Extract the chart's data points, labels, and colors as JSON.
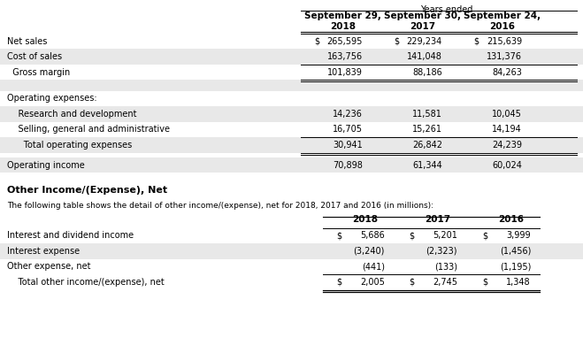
{
  "title_header": "Years ended",
  "col_headers": [
    "September 29,\n2018",
    "September 30,\n2017",
    "September 24,\n2016"
  ],
  "section1_rows": [
    {
      "label": "Net sales",
      "vals": [
        "265,595",
        "229,234",
        "215,639"
      ],
      "has_dollar": [
        true,
        true,
        true
      ],
      "shaded": false,
      "top_border": true,
      "bottom_border": false
    },
    {
      "label": "Cost of sales",
      "vals": [
        "163,756",
        "141,048",
        "131,376"
      ],
      "has_dollar": [
        false,
        false,
        false
      ],
      "shaded": true,
      "top_border": false,
      "bottom_border": false
    },
    {
      "label": "  Gross margin",
      "vals": [
        "101,839",
        "88,186",
        "84,263"
      ],
      "has_dollar": [
        false,
        false,
        false
      ],
      "shaded": false,
      "top_border": true,
      "bottom_border": true
    }
  ],
  "section2_header": "Operating expenses:",
  "section2_rows": [
    {
      "label": "    Research and development",
      "vals": [
        "14,236",
        "11,581",
        "10,045"
      ],
      "has_dollar": [
        false,
        false,
        false
      ],
      "shaded": true,
      "top_border": false,
      "bottom_border": false
    },
    {
      "label": "    Selling, general and administrative",
      "vals": [
        "16,705",
        "15,261",
        "14,194"
      ],
      "has_dollar": [
        false,
        false,
        false
      ],
      "shaded": false,
      "top_border": false,
      "bottom_border": false
    },
    {
      "label": "      Total operating expenses",
      "vals": [
        "30,941",
        "26,842",
        "24,239"
      ],
      "has_dollar": [
        false,
        false,
        false
      ],
      "shaded": true,
      "top_border": true,
      "bottom_border": true
    }
  ],
  "section3_rows": [
    {
      "label": "Operating income",
      "vals": [
        "70,898",
        "61,344",
        "60,024"
      ],
      "has_dollar": [
        false,
        false,
        false
      ],
      "shaded": true,
      "top_border": false,
      "bottom_border": false
    }
  ],
  "section4_title": "Other Income/(Expense), Net",
  "section4_subtitle": "The following table shows the detail of other income/(expense), net for 2018, 2017 and 2016 (in millions):",
  "section4_col_headers": [
    "2018",
    "2017",
    "2016"
  ],
  "section4_rows": [
    {
      "label": "Interest and dividend income",
      "vals": [
        "5,686",
        "5,201",
        "3,999"
      ],
      "has_dollar": [
        true,
        true,
        true
      ],
      "shaded": false,
      "top_border": true,
      "bottom_border": false,
      "bottom_border_double": false
    },
    {
      "label": "Interest expense",
      "vals": [
        "(3,240)",
        "(2,323)",
        "(1,456)"
      ],
      "has_dollar": [
        false,
        false,
        false
      ],
      "shaded": true,
      "top_border": false,
      "bottom_border": false,
      "bottom_border_double": false
    },
    {
      "label": "Other expense, net",
      "vals": [
        "(441)",
        "(133)",
        "(1,195)"
      ],
      "has_dollar": [
        false,
        false,
        false
      ],
      "shaded": false,
      "top_border": false,
      "bottom_border": false,
      "bottom_border_double": false
    },
    {
      "label": "    Total other income/(expense), net",
      "vals": [
        "2,005",
        "2,745",
        "1,348"
      ],
      "has_dollar": [
        true,
        true,
        true
      ],
      "shaded": false,
      "top_border": true,
      "bottom_border": false,
      "bottom_border_double": true
    }
  ],
  "bg_color": "#ffffff",
  "shade_color": "#e8e8e8",
  "text_color": "#000000",
  "font_size": 7.0,
  "bold_font_size": 7.5
}
